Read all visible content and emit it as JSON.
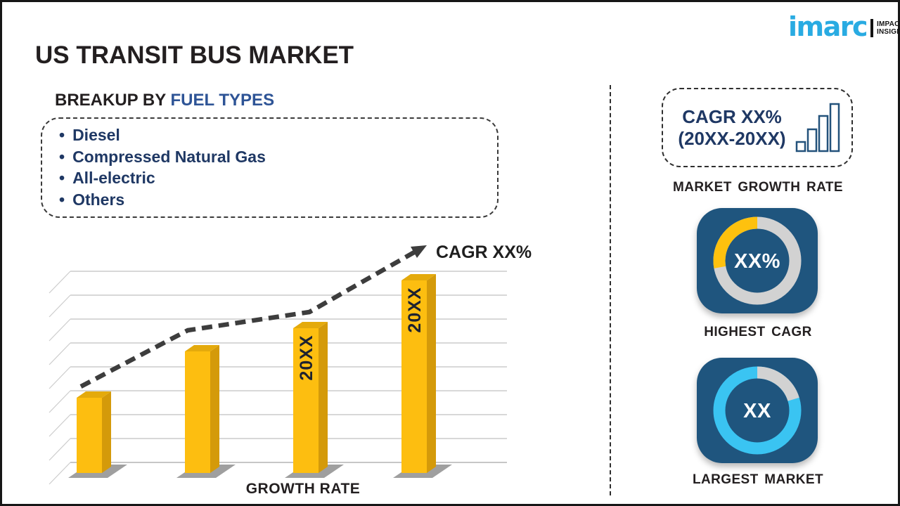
{
  "page": {
    "title": "US TRANSIT BUS MARKET"
  },
  "logo": {
    "brand": "imarc",
    "tagline_line1": "IMPACTFUL",
    "tagline_line2": "INSIGHTS",
    "brand_color": "#29ABE2"
  },
  "breakup": {
    "heading_prefix": "BREAKUP BY ",
    "heading_highlight": "FUEL TYPES",
    "items": [
      "Diesel",
      "Compressed Natural Gas",
      "All-electric",
      "Others"
    ]
  },
  "chart_data": {
    "type": "bar",
    "title": "",
    "xlabel": "GROWTH RATE",
    "trend_line_label": "CAGR XX%",
    "bars": [
      {
        "label": "",
        "value": 39
      },
      {
        "label": "",
        "value": 63
      },
      {
        "label": "20XX",
        "value": 75
      },
      {
        "label": "20XX",
        "value": 100
      }
    ],
    "ylim": [
      0,
      100
    ],
    "grid": true,
    "legend": false,
    "trend_style": "dashed-arrow"
  },
  "panel": {
    "growth_box": {
      "line1": "CAGR XX%",
      "line2": "(20XX-20XX)",
      "icon": "ascending-bar-chart-icon",
      "caption": "MARKET GROWTH RATE"
    },
    "highest_cagr": {
      "value": "XX%",
      "caption": "HIGHEST CAGR",
      "ring_filled_percent": 28,
      "ring_filled_color": "#FEC10E",
      "ring_track_color": "#D2D2D2"
    },
    "largest_market": {
      "value": "XX",
      "caption": "LARGEST MARKET",
      "ring_filled_percent": 80,
      "ring_filled_color": "#3AC4F2",
      "ring_track_color": "#D2D2D2"
    }
  },
  "colors": {
    "title_dark": "#231F20",
    "heading_blue": "#2E5496",
    "navy": "#1F3864",
    "bar_yellow": "#FDBE10",
    "bar_side": "#D49A0A",
    "bar_top": "#E4AA0C",
    "bar_label": "#1D2230",
    "shadow_gray": "#515151",
    "grid_gray": "#CCCCCC",
    "trend_gray": "#3D3D3D",
    "tile_blue": "#1F557E",
    "accent_cyan": "#29ABE2"
  }
}
